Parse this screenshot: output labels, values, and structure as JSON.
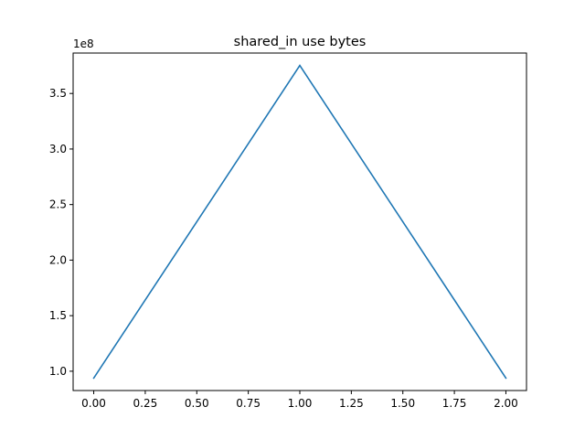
{
  "chart_data": {
    "type": "line",
    "title": "shared_in use bytes",
    "xlabel": "",
    "ylabel": "",
    "offset_label": "1e8",
    "xlim": [
      -0.1,
      2.1
    ],
    "ylim": [
      0.8262,
      3.8638
    ],
    "x_ticks": [
      0.0,
      0.25,
      0.5,
      0.75,
      1.0,
      1.25,
      1.5,
      1.75,
      2.0
    ],
    "x_tick_labels": [
      "0.00",
      "0.25",
      "0.50",
      "0.75",
      "1.00",
      "1.25",
      "1.50",
      "1.75",
      "2.00"
    ],
    "y_ticks": [
      1.0,
      1.5,
      2.0,
      2.5,
      3.0,
      3.5
    ],
    "y_tick_labels": [
      "1.0",
      "1.5",
      "2.0",
      "2.5",
      "3.0",
      "3.5"
    ],
    "grid": false,
    "series": [
      {
        "x": [
          0,
          1,
          2
        ],
        "values": [
          0.9383,
          3.7517,
          0.9383
        ],
        "color": "#1f77b4"
      }
    ]
  }
}
